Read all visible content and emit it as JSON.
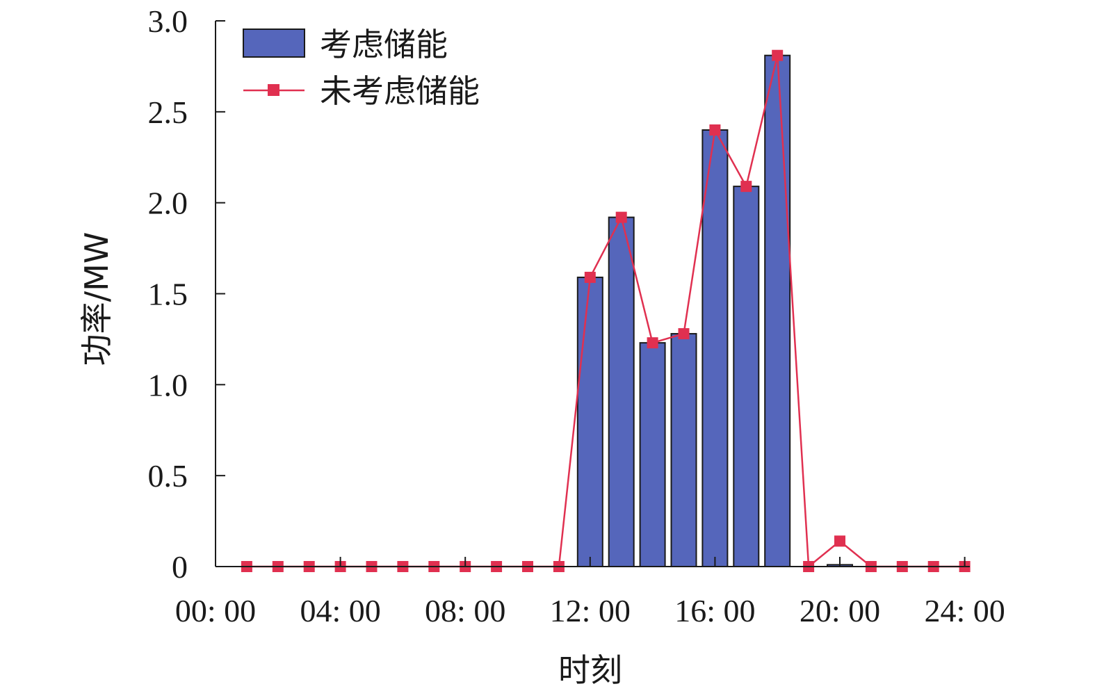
{
  "chart_data": {
    "type": "bar",
    "xlabel": "时刻",
    "ylabel": "功率/MW",
    "ylim": [
      0,
      3.0
    ],
    "yticks": [
      "0",
      "0.5",
      "1.0",
      "1.5",
      "2.0",
      "2.5",
      "3.0"
    ],
    "xticks": [
      "00: 00",
      "04: 00",
      "08: 00",
      "12: 00",
      "16: 00",
      "20: 00",
      "24: 00"
    ],
    "x_hours": [
      1,
      2,
      3,
      4,
      5,
      6,
      7,
      8,
      9,
      10,
      11,
      12,
      13,
      14,
      15,
      16,
      17,
      18,
      19,
      20,
      21,
      22,
      23,
      24
    ],
    "series": [
      {
        "name": "考虑储能",
        "kind": "bar",
        "color": "#5566bb",
        "values": [
          0,
          0,
          0,
          0,
          0,
          0,
          0,
          0,
          0,
          0,
          0,
          1.59,
          1.92,
          1.23,
          1.28,
          2.4,
          2.09,
          2.81,
          0,
          0.01,
          0,
          0,
          0,
          0
        ]
      },
      {
        "name": "未考虑储能",
        "kind": "line",
        "color": "#e03050",
        "values": [
          0,
          0,
          0,
          0,
          0,
          0,
          0,
          0,
          0,
          0,
          0,
          1.59,
          1.92,
          1.23,
          1.28,
          2.4,
          2.09,
          2.81,
          0,
          0.14,
          0,
          0,
          0,
          0
        ]
      }
    ],
    "legend_position": "top-left",
    "grid": false
  }
}
